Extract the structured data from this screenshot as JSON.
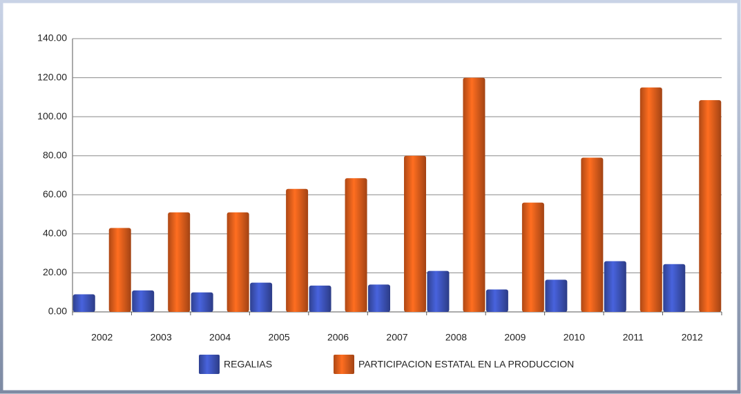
{
  "chart_data": {
    "type": "bar",
    "categories": [
      "2002",
      "2003",
      "2004",
      "2005",
      "2006",
      "2007",
      "2008",
      "2009",
      "2010",
      "2011",
      "2012"
    ],
    "series": [
      {
        "name": "REGALIAS",
        "color": "#3f56c0",
        "values": [
          9,
          11,
          10,
          15,
          13.5,
          14,
          21,
          11.5,
          16.5,
          26,
          24.5
        ]
      },
      {
        "name": "PARTICIPACION ESTATAL EN LA PRODUCCION",
        "color": "#e8601c",
        "values": [
          43,
          51,
          51,
          63,
          68.5,
          80,
          120,
          56,
          79,
          115,
          108.5
        ]
      }
    ],
    "ylim": [
      0,
      140
    ],
    "yticks": [
      {
        "value": 0,
        "label": "0.00"
      },
      {
        "value": 20,
        "label": "20.00"
      },
      {
        "value": 40,
        "label": "40.00"
      },
      {
        "value": 60,
        "label": "60.00"
      },
      {
        "value": 80,
        "label": "80.00"
      },
      {
        "value": 100,
        "label": "100.00"
      },
      {
        "value": 120,
        "label": "120.00"
      },
      {
        "value": 140,
        "label": "140.00"
      }
    ],
    "grid": true,
    "legend": "bottom"
  }
}
